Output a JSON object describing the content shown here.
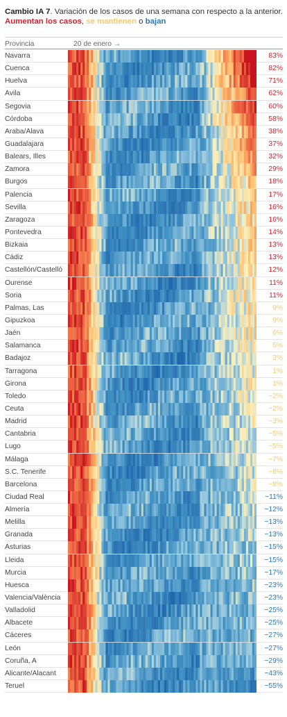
{
  "header": {
    "title_bold": "Cambio IA 7",
    "title_rest": ". Variación de los casos de una semana con respecto a la anterior.",
    "legend_up": "Aumentan los casos",
    "legend_sep1": ", ",
    "legend_same": "se mantienen",
    "legend_sep2": " o ",
    "legend_down": "bajan",
    "col_province": "Provincia",
    "col_date": "20 de enero →"
  },
  "colors": {
    "up": "#d41e2a",
    "same": "#f5c96a",
    "down": "#2878b7"
  },
  "chart_data": {
    "type": "heatmap",
    "description_value": "percent change of 7-day cumulative incidence vs previous week, last value per province",
    "rows": [
      {
        "province": "Navarra",
        "value": 83,
        "label": "83%"
      },
      {
        "province": "Cuenca",
        "value": 82,
        "label": "82%"
      },
      {
        "province": "Huelva",
        "value": 71,
        "label": "71%"
      },
      {
        "province": "Ávila",
        "value": 62,
        "label": "62%"
      },
      {
        "province": "Segovia",
        "value": 60,
        "label": "60%"
      },
      {
        "province": "Córdoba",
        "value": 58,
        "label": "58%"
      },
      {
        "province": "Araba/Álava",
        "value": 38,
        "label": "38%"
      },
      {
        "province": "Guadalajara",
        "value": 37,
        "label": "37%"
      },
      {
        "province": "Balears, Illes",
        "value": 32,
        "label": "32%"
      },
      {
        "province": "Zamora",
        "value": 29,
        "label": "29%"
      },
      {
        "province": "Burgos",
        "value": 18,
        "label": "18%"
      },
      {
        "province": "Palencia",
        "value": 17,
        "label": "17%"
      },
      {
        "province": "Sevilla",
        "value": 16,
        "label": "16%"
      },
      {
        "province": "Zaragoza",
        "value": 16,
        "label": "16%"
      },
      {
        "province": "Pontevedra",
        "value": 14,
        "label": "14%"
      },
      {
        "province": "Bizkaia",
        "value": 13,
        "label": "13%"
      },
      {
        "province": "Cádiz",
        "value": 13,
        "label": "13%"
      },
      {
        "province": "Castellón/Castelló",
        "value": 12,
        "label": "12%"
      },
      {
        "province": "Ourense",
        "value": 11,
        "label": "11%"
      },
      {
        "province": "Soria",
        "value": 11,
        "label": "11%"
      },
      {
        "province": "Palmas, Las",
        "value": 9,
        "label": "9%"
      },
      {
        "province": "Gipuzkoa",
        "value": 9,
        "label": "9%"
      },
      {
        "province": "Jaén",
        "value": 6,
        "label": "6%"
      },
      {
        "province": "Salamanca",
        "value": 5,
        "label": "5%"
      },
      {
        "province": "Badajoz",
        "value": 3,
        "label": "3%"
      },
      {
        "province": "Tarragona",
        "value": 1,
        "label": "1%"
      },
      {
        "province": "Girona",
        "value": 1,
        "label": "1%"
      },
      {
        "province": "Toledo",
        "value": -2,
        "label": "−2%"
      },
      {
        "province": "Ceuta",
        "value": -2,
        "label": "−2%"
      },
      {
        "province": "Madrid",
        "value": -3,
        "label": "−3%"
      },
      {
        "province": "Cantabria",
        "value": -5,
        "label": "−5%"
      },
      {
        "province": "Lugo",
        "value": -5,
        "label": "−5%"
      },
      {
        "province": "Málaga",
        "value": -7,
        "label": "−7%"
      },
      {
        "province": "S.C. Tenerife",
        "value": -8,
        "label": "−8%"
      },
      {
        "province": "Barcelona",
        "value": -8,
        "label": "−8%"
      },
      {
        "province": "Ciudad Real",
        "value": -11,
        "label": "−11%"
      },
      {
        "province": "Almería",
        "value": -12,
        "label": "−12%"
      },
      {
        "province": "Melilla",
        "value": -13,
        "label": "−13%"
      },
      {
        "province": "Granada",
        "value": -13,
        "label": "−13%"
      },
      {
        "province": "Asturias",
        "value": -15,
        "label": "−15%"
      },
      {
        "province": "Lleida",
        "value": -15,
        "label": "−15%"
      },
      {
        "province": "Murcia",
        "value": -17,
        "label": "−17%"
      },
      {
        "province": "Huesca",
        "value": -23,
        "label": "−23%"
      },
      {
        "province": "Valencia/València",
        "value": -23,
        "label": "−23%"
      },
      {
        "province": "Valladolid",
        "value": -25,
        "label": "−25%"
      },
      {
        "province": "Albacete",
        "value": -25,
        "label": "−25%"
      },
      {
        "province": "Cáceres",
        "value": -27,
        "label": "−27%"
      },
      {
        "province": "León",
        "value": -27,
        "label": "−27%"
      },
      {
        "province": "Coruña, A",
        "value": -29,
        "label": "−29%"
      },
      {
        "province": "Alicante/Alacant",
        "value": -43,
        "label": "−43%"
      },
      {
        "province": "Teruel",
        "value": -55,
        "label": "−55%"
      }
    ]
  }
}
